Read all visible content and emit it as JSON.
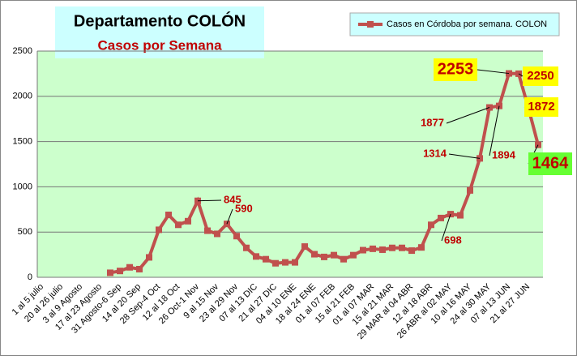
{
  "chart_data": {
    "type": "line",
    "title": "Departamento COLÓN",
    "subtitle": "Casos por Semana",
    "categories": [
      "1 al 5 julio",
      null,
      "20 al 26 julio",
      null,
      "3 al 9 Agosto",
      null,
      "17 al 23 Agosto",
      null,
      "31 Agosto-6 Sep",
      null,
      "14 al 20 Sep",
      null,
      "28 Sep-4 Oct",
      null,
      "12 al 18 Oct",
      null,
      "26 Oct-1 Nov",
      null,
      "9 al 15 Nov",
      null,
      "23 al 29 Nov",
      null,
      "07 al 13 DIC",
      null,
      "21 al 27 DIC",
      null,
      "04 al 10 ENE",
      null,
      "18 al 24 ENE",
      null,
      "01 al 07 FEB",
      null,
      "15 al 21 FEB",
      null,
      "01 al 07 MAR",
      null,
      "15 al 21 MAR",
      null,
      "29 MAR al 04 ABR",
      null,
      "12 al 18 ABR",
      null,
      "26 ABR al 02 MAY",
      null,
      "10 al 16 MAY",
      null,
      "24 al 30 MAY",
      null,
      "07 al 13 JUN",
      null,
      "21 al 27 JUN",
      null
    ],
    "series": [
      {
        "name": "Casos en Córdoba por semana. COLON",
        "color": "#c0504d",
        "values": [
          null,
          null,
          null,
          null,
          null,
          null,
          null,
          50,
          70,
          110,
          90,
          220,
          525,
          690,
          580,
          620,
          845,
          515,
          480,
          590,
          455,
          325,
          230,
          200,
          155,
          165,
          165,
          340,
          255,
          225,
          245,
          200,
          245,
          300,
          315,
          305,
          325,
          325,
          295,
          330,
          580,
          655,
          698,
          685,
          960,
          1314,
          1877,
          1894,
          2253,
          2250,
          1872,
          1464
        ]
      }
    ],
    "ylim": [
      0,
      2500
    ],
    "yticks": [
      0,
      500,
      1000,
      1500,
      2000,
      2500
    ],
    "grid": true,
    "legend": "top-right"
  }
}
